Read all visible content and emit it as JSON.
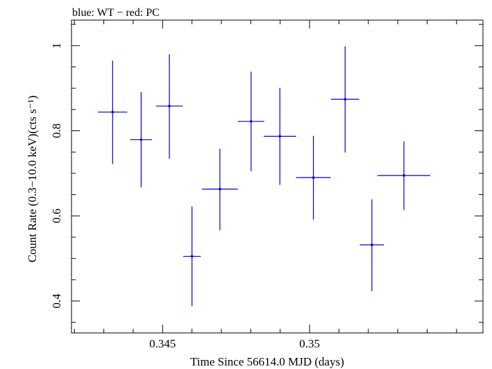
{
  "chart_data": {
    "type": "scatter",
    "title": "blue: WT − red: PC",
    "xlabel": "Time Since 56614.0 MJD (days)",
    "ylabel": "Count Rate (0.3−10.0 keV)(cts s⁻¹)",
    "xlim": [
      0.3419,
      0.3559
    ],
    "ylim": [
      0.325,
      1.06
    ],
    "x_ticks": [
      0.345,
      0.35
    ],
    "x_tick_labels": [
      "0.345",
      "0.35"
    ],
    "y_ticks": [
      0.4,
      0.6,
      0.8,
      1.0
    ],
    "y_tick_labels": [
      "0.4",
      "0.6",
      "0.8",
      "1"
    ],
    "series": [
      {
        "name": "WT",
        "color": "#0000cc",
        "points": [
          {
            "x": 0.3433,
            "xerr": 0.0005,
            "y": 0.844,
            "yerr_hi": 0.121,
            "yerr_lo": 0.122
          },
          {
            "x": 0.34427,
            "xerr": 0.00037,
            "y": 0.779,
            "yerr_hi": 0.112,
            "yerr_lo": 0.112
          },
          {
            "x": 0.34523,
            "xerr": 0.00046,
            "y": 0.858,
            "yerr_hi": 0.122,
            "yerr_lo": 0.124
          },
          {
            "x": 0.346,
            "xerr": 0.0003,
            "y": 0.505,
            "yerr_hi": 0.117,
            "yerr_lo": 0.117
          },
          {
            "x": 0.34695,
            "xerr": 0.00061,
            "y": 0.663,
            "yerr_hi": 0.095,
            "yerr_lo": 0.097
          },
          {
            "x": 0.34801,
            "xerr": 0.00045,
            "y": 0.822,
            "yerr_hi": 0.117,
            "yerr_lo": 0.117
          },
          {
            "x": 0.34899,
            "xerr": 0.00055,
            "y": 0.787,
            "yerr_hi": 0.114,
            "yerr_lo": 0.114
          },
          {
            "x": 0.35013,
            "xerr": 0.00059,
            "y": 0.69,
            "yerr_hi": 0.098,
            "yerr_lo": 0.099
          },
          {
            "x": 0.35121,
            "xerr": 0.00048,
            "y": 0.874,
            "yerr_hi": 0.124,
            "yerr_lo": 0.125
          },
          {
            "x": 0.35212,
            "xerr": 0.00041,
            "y": 0.532,
            "yerr_hi": 0.107,
            "yerr_lo": 0.109
          },
          {
            "x": 0.35321,
            "xerr": 0.0009,
            "y": 0.695,
            "yerr_hi": 0.08,
            "yerr_lo": 0.081
          }
        ]
      }
    ]
  }
}
